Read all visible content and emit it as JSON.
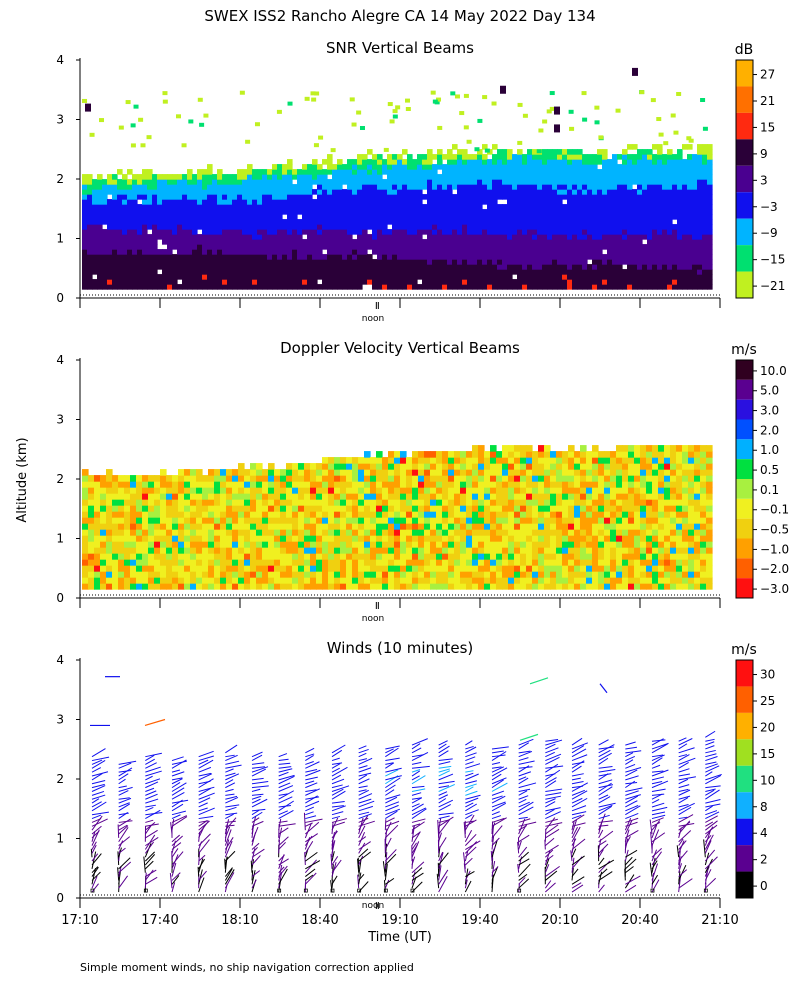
{
  "page": {
    "title": "SWEX ISS2 Rancho Alegre CA  14 May 2022 Day 134",
    "footnote": "Simple moment winds, no ship navigation correction applied",
    "y_axis_label": "Altitude (km)",
    "x_axis_label": "Time (UT)",
    "noon_label": "noon"
  },
  "chart_data": [
    {
      "type": "heatmap",
      "title": "SNR Vertical Beams",
      "xlabel": "",
      "ylabel": "Altitude (km)",
      "xlim": [
        "17:10",
        "21:10"
      ],
      "ylim": [
        0,
        4
      ],
      "y_ticks": [
        "0",
        "1",
        "2",
        "3",
        "4"
      ],
      "colorbar": {
        "unit": "dB",
        "labels": [
          "27",
          "21",
          "15",
          "9",
          "3",
          "−3",
          "−9",
          "−15",
          "−21"
        ],
        "colors": [
          "#ffb000",
          "#ff7000",
          "#ff2a10",
          "#2a0038",
          "#4a0090",
          "#1010ee",
          "#00b4ff",
          "#00e070",
          "#c0f020"
        ]
      },
      "layers": [
        {
          "label": "-21",
          "alt_top_km": [
            2.0,
            2.05,
            2.1,
            2.15,
            2.25,
            2.35,
            2.4,
            2.45,
            2.45,
            2.4,
            2.45,
            2.5
          ]
        },
        {
          "label": "-15",
          "alt_top_km": [
            1.9,
            1.95,
            2.0,
            2.05,
            2.15,
            2.25,
            2.3,
            2.35,
            2.4,
            2.35,
            2.4,
            2.4
          ]
        },
        {
          "label": "-9",
          "alt_top_km": [
            1.8,
            1.85,
            1.9,
            1.95,
            2.05,
            2.15,
            2.2,
            2.25,
            2.3,
            2.25,
            2.3,
            2.3
          ]
        },
        {
          "label": "-3",
          "alt_top_km": [
            1.65,
            1.6,
            1.65,
            1.6,
            1.75,
            1.8,
            1.85,
            1.9,
            1.85,
            1.75,
            1.8,
            1.9
          ]
        },
        {
          "label": "3",
          "alt_top_km": [
            1.15,
            1.1,
            1.1,
            1.05,
            1.1,
            1.05,
            1.1,
            1.1,
            1.0,
            1.0,
            1.05,
            1.0
          ]
        },
        {
          "label": "9",
          "alt_top_km": [
            0.75,
            0.7,
            0.75,
            0.7,
            0.65,
            0.7,
            0.6,
            0.55,
            0.5,
            0.55,
            0.5,
            0.45
          ]
        }
      ]
    },
    {
      "type": "heatmap",
      "title": "Doppler Velocity Vertical Beams",
      "xlabel": "",
      "ylabel": "Altitude (km)",
      "xlim": [
        "17:10",
        "21:10"
      ],
      "ylim": [
        0,
        4
      ],
      "y_ticks": [
        "0",
        "1",
        "2",
        "3",
        "4"
      ],
      "colorbar": {
        "unit": "m/s",
        "labels": [
          "10.0",
          "5.0",
          "3.0",
          "2.0",
          "1.0",
          "0.5",
          "0.1",
          "−0.1",
          "−0.5",
          "−1.0",
          "−2.0",
          "−3.0"
        ],
        "colors": [
          "#300020",
          "#5a0090",
          "#2a10e0",
          "#0050ff",
          "#00b0ff",
          "#00e040",
          "#a8f040",
          "#f0f020",
          "#f0d010",
          "#ffa000",
          "#ff6000",
          "#ff1010"
        ]
      },
      "top_alt_km": [
        2.05,
        2.0,
        2.1,
        2.15,
        2.25,
        2.35,
        2.4,
        2.45,
        2.5,
        2.45,
        2.5,
        2.5
      ]
    },
    {
      "type": "scatter",
      "title": "Winds (10 minutes)",
      "xlabel": "Time (UT)",
      "ylabel": "Altitude (km)",
      "xlim": [
        "17:10",
        "21:10"
      ],
      "ylim": [
        0,
        4
      ],
      "y_ticks": [
        "0",
        "1",
        "2",
        "3",
        "4"
      ],
      "x_ticks": [
        "17:10",
        "17:40",
        "18:10",
        "18:40",
        "19:10",
        "19:40",
        "20:10",
        "20:40",
        "21:10"
      ],
      "colorbar": {
        "unit": "m/s",
        "labels": [
          "30",
          "25",
          "20",
          "15",
          "10",
          "8",
          "4",
          "2",
          "0"
        ],
        "colors": [
          "#ff1010",
          "#ff6000",
          "#ffb000",
          "#a0e020",
          "#20e080",
          "#10b0ff",
          "#1010ee",
          "#5a0090",
          "#000000"
        ]
      },
      "profile_times": [
        "17:10",
        "17:20",
        "17:30",
        "17:40",
        "17:50",
        "18:00",
        "18:10",
        "18:20",
        "18:30",
        "18:40",
        "18:50",
        "19:00",
        "19:10",
        "19:20",
        "19:30",
        "19:40",
        "19:50",
        "20:00",
        "20:10",
        "20:20",
        "20:30",
        "20:40",
        "20:50",
        "21:00"
      ],
      "profile_top_km": [
        2.4,
        2.3,
        2.4,
        2.35,
        2.4,
        2.45,
        2.4,
        2.4,
        2.45,
        2.5,
        2.55,
        2.55,
        2.6,
        2.6,
        2.6,
        2.55,
        2.6,
        2.65,
        2.6,
        2.6,
        2.6,
        2.65,
        2.65,
        2.7
      ]
    }
  ]
}
